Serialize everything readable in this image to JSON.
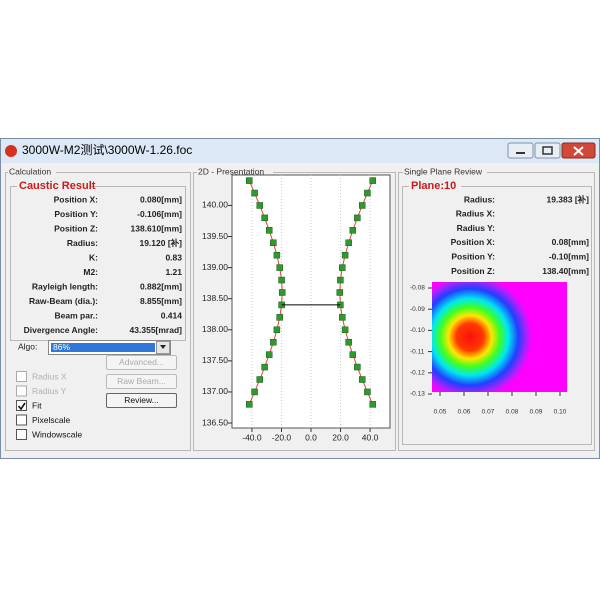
{
  "window": {
    "title": "3000W-M2测试\\3000W-1.26.foc"
  },
  "calculation": {
    "group_title": "Calculation",
    "section_title": "Caustic Result",
    "fields": [
      {
        "label": "Position X:",
        "value": "0.080[mm]"
      },
      {
        "label": "Position Y:",
        "value": "-0.106[mm]"
      },
      {
        "label": "Position Z:",
        "value": "138.610[mm]"
      },
      {
        "label": "Radius:",
        "value": "19.120 [补]"
      },
      {
        "label": "K:",
        "value": "0.83"
      },
      {
        "label": "M2:",
        "value": "1.21"
      },
      {
        "label": "Rayleigh length:",
        "value": "0.882[mm]"
      },
      {
        "label": "Raw-Beam (dia.):",
        "value": "8.855[mm]"
      },
      {
        "label": "Beam par.:",
        "value": "0.414"
      },
      {
        "label": "Divergence Angle:",
        "value": "43.355[mrad]"
      }
    ],
    "algo_label": "Algo:",
    "algo_value": "86%",
    "checkboxes": [
      {
        "label": "Radius X",
        "checked": false,
        "enabled": false
      },
      {
        "label": "Radius Y",
        "checked": false,
        "enabled": false
      },
      {
        "label": "Fit",
        "checked": true,
        "enabled": true
      },
      {
        "label": "Pixelscale",
        "checked": false,
        "enabled": true
      },
      {
        "label": "Windowscale",
        "checked": false,
        "enabled": true
      }
    ],
    "buttons": [
      {
        "label": "Advanced...",
        "enabled": false
      },
      {
        "label": "Raw Beam...",
        "enabled": false
      },
      {
        "label": "Review...",
        "enabled": true
      }
    ]
  },
  "presentation": {
    "group_title": "2D - Presentation"
  },
  "chart_data": {
    "type": "line",
    "xlim": [
      -53.5,
      53.5
    ],
    "ylim": [
      136.42,
      140.49
    ],
    "grid": true,
    "xticks": [
      {
        "value": -40,
        "label": "-40.0"
      },
      {
        "value": -20,
        "label": "-20.0"
      },
      {
        "value": 0,
        "label": "0.0"
      },
      {
        "value": 20,
        "label": "20.0"
      },
      {
        "value": 40,
        "label": "40.0"
      }
    ],
    "yticks": [
      {
        "value": 136.5,
        "label": "136.50"
      },
      {
        "value": 137,
        "label": "137.00"
      },
      {
        "value": 137.5,
        "label": "137.50"
      },
      {
        "value": 138,
        "label": "138.00"
      },
      {
        "value": 138.5,
        "label": "138.50"
      },
      {
        "value": 139,
        "label": "139.00"
      },
      {
        "value": 139.5,
        "label": "139.50"
      },
      {
        "value": 140,
        "label": "140.00"
      }
    ],
    "series": [
      {
        "color": "#e8413c",
        "marker_color": "#2e9a2e",
        "markers": true,
        "x": [
          -41.8,
          -38.2,
          -34.7,
          -31.4,
          -28.3,
          -25.5,
          -23.1,
          -21.2,
          -19.9,
          -19.5,
          -19.9,
          -21.2,
          -23.1,
          -25.5,
          -28.3,
          -31.4,
          -34.7,
          -38.2,
          -41.8
        ],
        "values": [
          136.8,
          137.0,
          137.2,
          137.4,
          137.6,
          137.8,
          138.0,
          138.2,
          138.4,
          138.6,
          138.8,
          139.0,
          139.2,
          139.4,
          139.6,
          139.8,
          140.0,
          140.2,
          140.4
        ]
      },
      {
        "color": "#e8413c",
        "marker_color": "#2e9a2e",
        "markers": true,
        "x": [
          41.8,
          38.2,
          34.7,
          31.4,
          28.3,
          25.5,
          23.1,
          21.2,
          19.9,
          19.5,
          19.9,
          21.2,
          23.1,
          25.5,
          28.3,
          31.4,
          34.7,
          38.2,
          41.8
        ],
        "values": [
          136.8,
          137.0,
          137.2,
          137.4,
          137.6,
          137.8,
          138.0,
          138.2,
          138.4,
          138.6,
          138.8,
          139.0,
          139.2,
          139.4,
          139.6,
          139.8,
          140.0,
          140.2,
          140.4
        ]
      },
      {
        "color": "#000000",
        "markers": false,
        "x": [
          -19.9,
          19.9
        ],
        "values": [
          138.4,
          138.4
        ]
      }
    ]
  },
  "plane_review": {
    "group_title": "Single Plane Review",
    "plane_title": "Plane:10",
    "fields": [
      {
        "label": "Radius:",
        "value": "19.383 [补]"
      },
      {
        "label": "Radius X:"
      },
      {
        "label": "Radius Y:"
      },
      {
        "label": "Position X:",
        "value": "0.08[mm]"
      },
      {
        "label": "Position Y:",
        "value": "-0.10[mm]"
      },
      {
        "label": "Position Z:",
        "value": "138.40[mm]"
      }
    ],
    "y_labels": [
      "-0.08",
      "-0.09",
      "-0.10",
      "-0.11",
      "-0.12",
      "-0.13"
    ],
    "x_labels": [
      "0.05",
      "0.06",
      "0.07",
      "0.08",
      "0.09",
      "0.10"
    ]
  }
}
